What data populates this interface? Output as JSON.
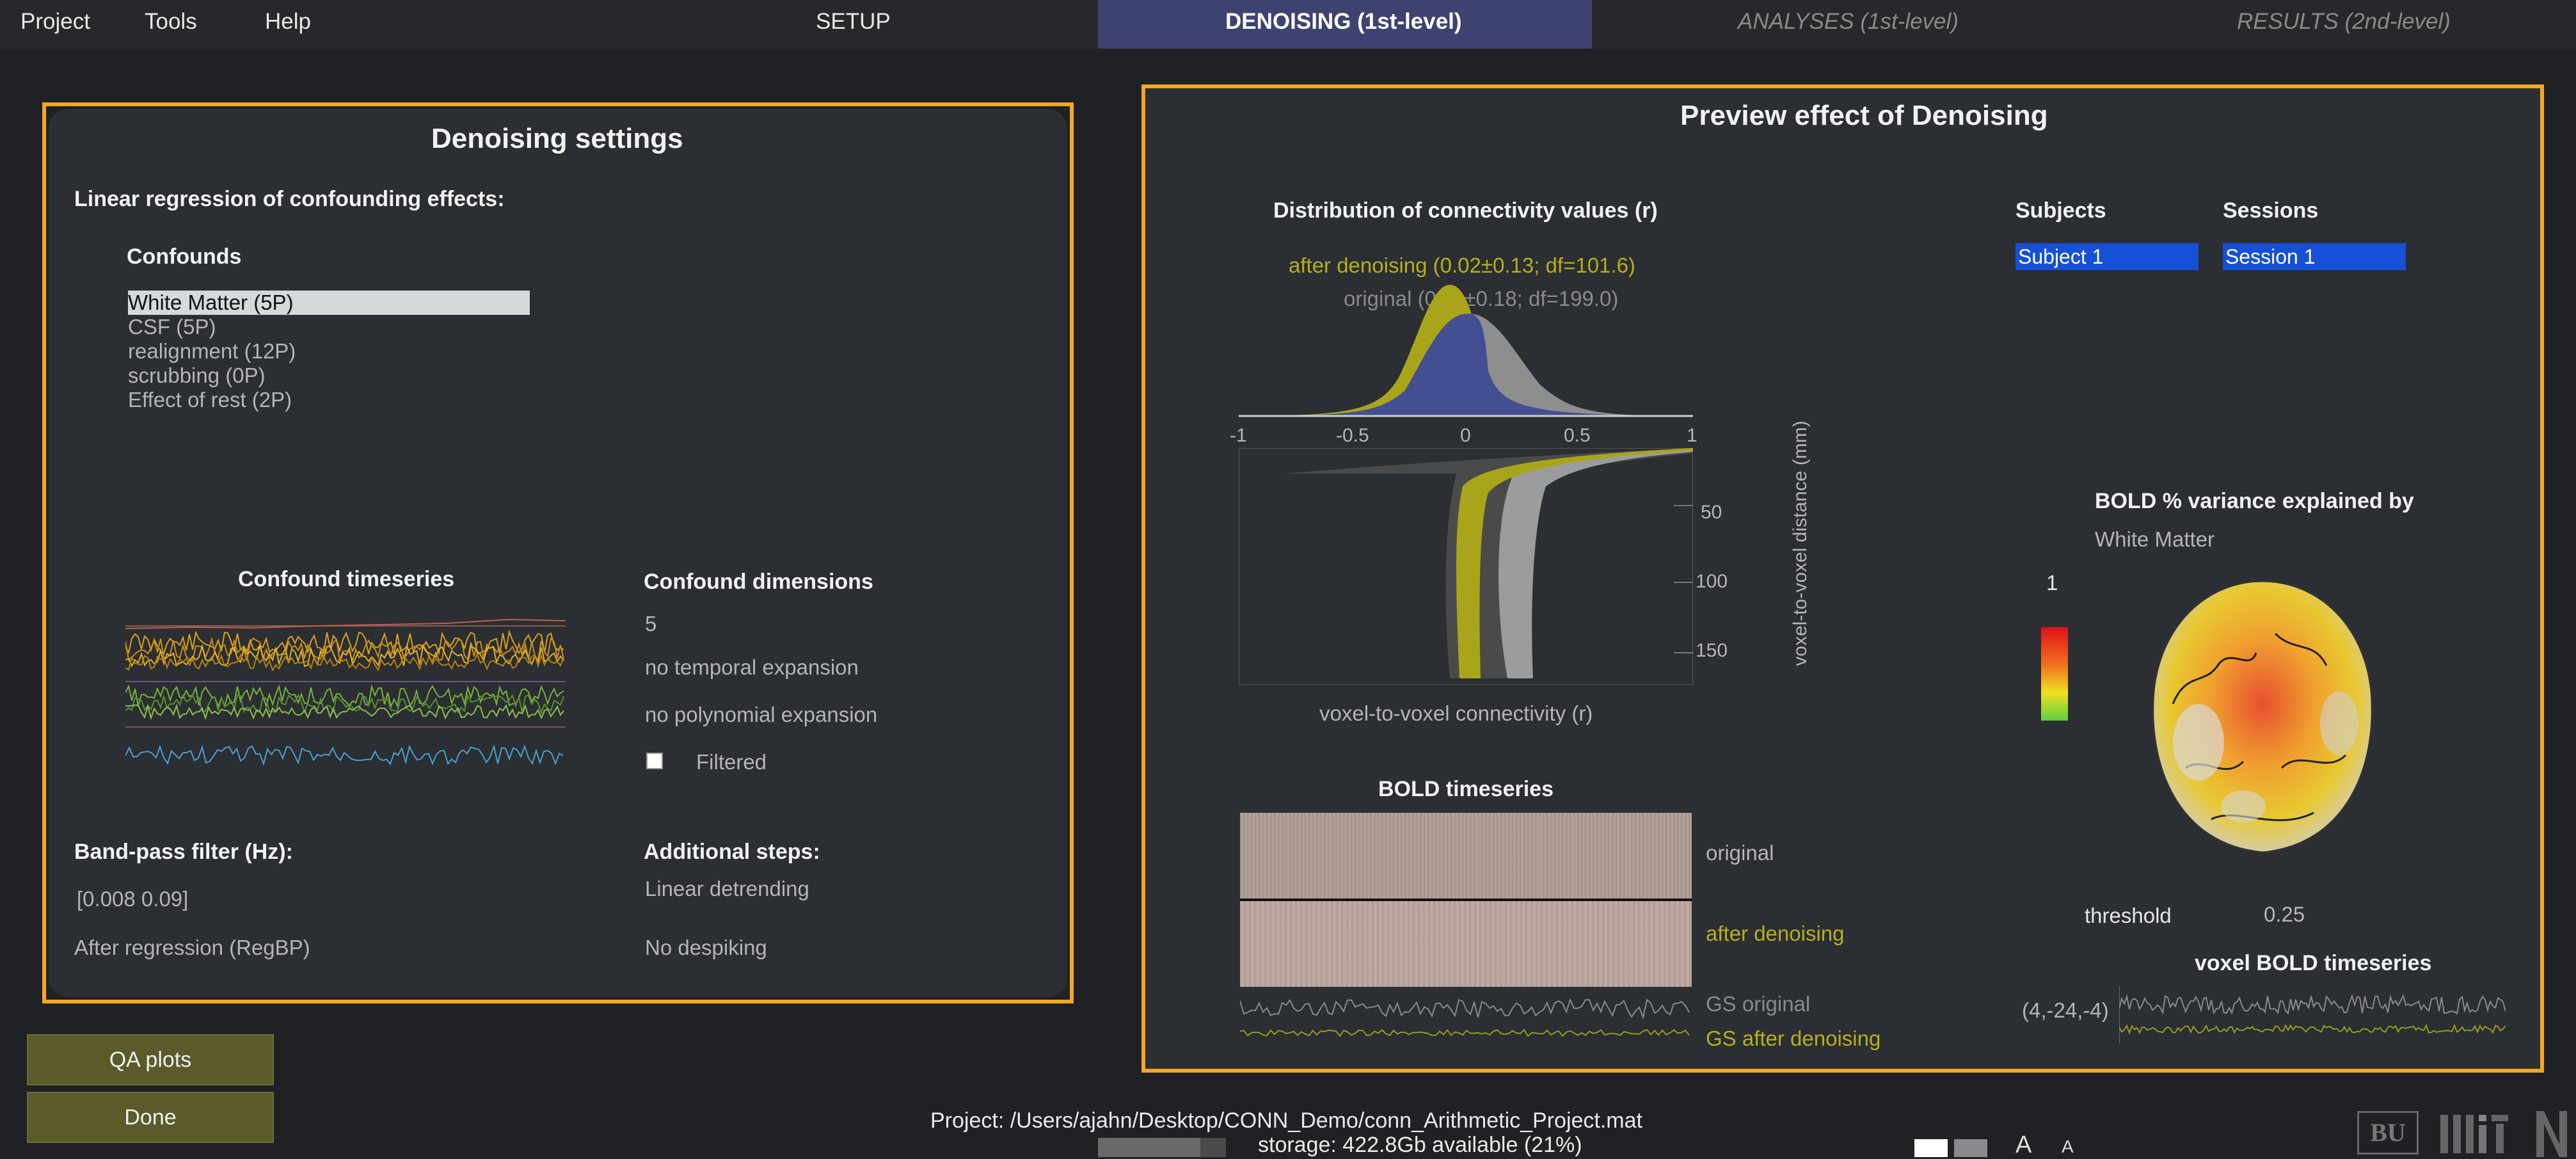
{
  "menu": {
    "project": "Project",
    "tools": "Tools",
    "help": "Help"
  },
  "tabs": {
    "setup": "SETUP",
    "denoising": "DENOISING (1st-level)",
    "analyses": "ANALYSES (1st-level)",
    "results": "RESULTS (2nd-level)"
  },
  "settings": {
    "title": "Denoising settings",
    "regression_label": "Linear regression of confounding effects:",
    "confounds_label": "Confounds",
    "confounds": [
      "White Matter (5P)",
      "CSF (5P)",
      "realignment (12P)",
      "scrubbing (0P)",
      "Effect of rest (2P)"
    ],
    "timeseries_label": "Confound timeseries",
    "dimensions_label": "Confound dimensions",
    "dimensions_value": "5",
    "temporal": "no temporal expansion",
    "polynomial": "no polynomial expansion",
    "filtered": "Filtered",
    "bandpass_label": "Band-pass filter (Hz):",
    "bandpass_value": "[0.008 0.09]",
    "after_regression": "After regression (RegBP)",
    "additional_label": "Additional steps:",
    "detrending": "Linear detrending",
    "despiking": "No despiking"
  },
  "buttons": {
    "qa": "QA plots",
    "done": "Done"
  },
  "preview": {
    "title": "Preview effect of Denoising",
    "dist_title": "Distribution of connectivity values (r)",
    "after_legend": "after denoising (0.02±0.13; df=101.6)",
    "original_legend": "original (0.11±0.18; df=199.0)",
    "x_ticks": [
      "-1",
      "-0.5",
      "0",
      "0.5",
      "1"
    ],
    "y_ticks": [
      "50",
      "100",
      "150"
    ],
    "y_label": "voxel-to-voxel distance (mm)",
    "x_label": "voxel-to-voxel connectivity (r)",
    "bold_title": "BOLD timeseries",
    "bold_original": "original",
    "bold_after": "after denoising",
    "gs_original": "GS original",
    "gs_after": "GS after denoising",
    "subjects_label": "Subjects",
    "sessions_label": "Sessions",
    "subject_value": "Subject 1",
    "session_value": "Session 1",
    "variance_title": "BOLD % variance explained by",
    "variance_sub": "White Matter",
    "colorbar_max": "1",
    "threshold_label": "threshold",
    "threshold_value": "0.25",
    "voxel_title": "voxel BOLD timeseries",
    "voxel_coord": "(4,-24,-4)"
  },
  "footer": {
    "project_path": "Project: /Users/ajahn/Desktop/CONN_Demo/conn_Arithmetic_Project.mat",
    "storage": "storage: 422.8Gb available (21%)",
    "font_a_big": "A",
    "font_a_small": "A",
    "logo_bu": "BU"
  },
  "colors": {
    "accent": "#f5a623",
    "olive": "#b7b01a",
    "navy": "#3e4270",
    "blue": "#1650d6"
  }
}
